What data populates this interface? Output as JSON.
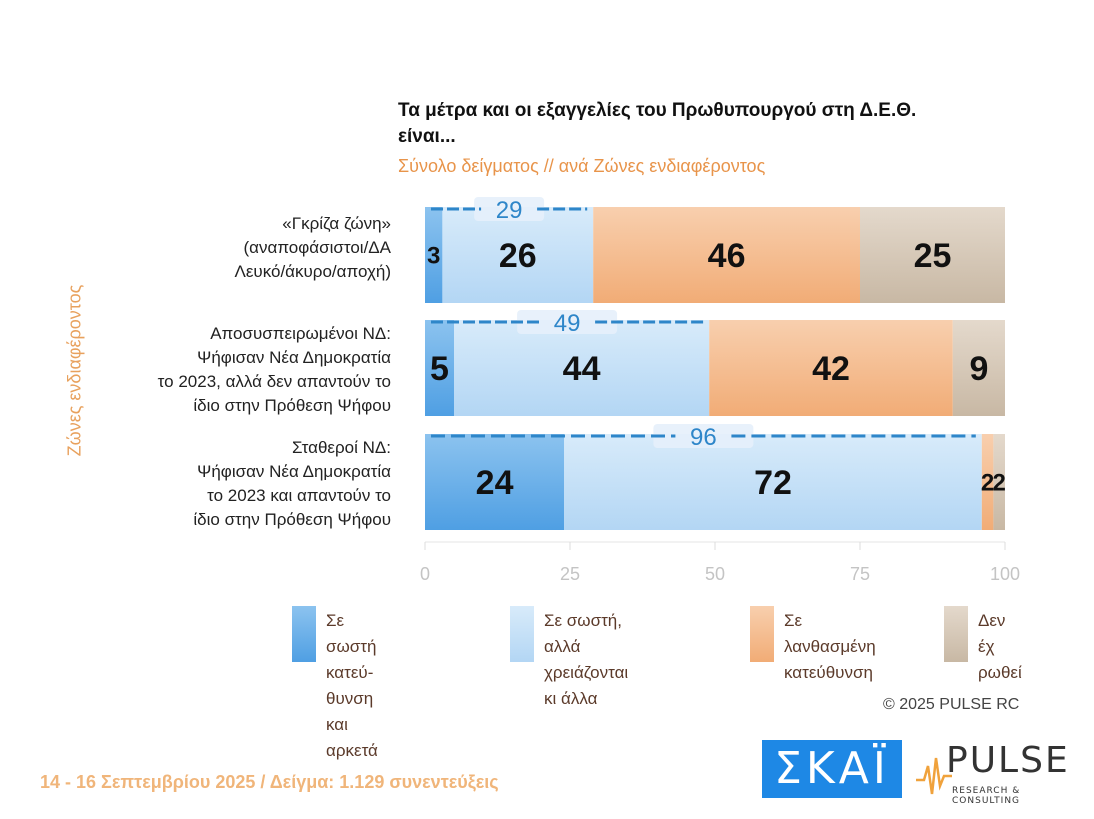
{
  "title": "Τα μέτρα και οι εξαγγελίες του Πρωθυπουργού στη Δ.Ε.Θ. είναι...",
  "subtitle": "Σύνολο δείγματος // ανά Ζώνες ενδιαφέροντος",
  "y_axis_title": "Ζώνες ενδιαφέροντος",
  "categories_lines": [
    [
      "«Γκρίζα ζώνη»",
      "(αναποφάσιστοι/ΔΑ",
      "Λευκό/άκυρο/αποχή)"
    ],
    [
      "Αποσυσπειρωμένοι ΝΔ:",
      "Ψήφισαν Νέα Δημοκρατία",
      "το 2023, αλλά δεν απαντούν το",
      "ίδιο στην Πρόθεση Ψήφου"
    ],
    [
      "Σταθεροί ΝΔ:",
      "Ψήφισαν Νέα Δημοκρατία",
      "το 2023 και απαντούν το",
      "ίδιο στην Πρόθεση Ψήφου"
    ]
  ],
  "legend": [
    "Σε σωστή κατεύ-\nθυνση και αρκετά",
    "Σε σωστή, αλλά\nχρειάζονται κι άλλα",
    "Σε λανθασμένη\nκατεύθυνση",
    "Δεν έχ\nρωθεί"
  ],
  "colors": {
    "dark_blue": "#5aa7e6",
    "light_blue": "#bcdcf6",
    "orange": "#f4b88a",
    "grey": "#d6c8b6",
    "sum_label": "#2e86c9"
  },
  "chart_data": {
    "type": "bar",
    "orientation": "horizontal",
    "stacked": true,
    "categories": [
      "«Γκρίζα ζώνη» (αναποφάσιστοι/ΔΑ Λευκό/άκυρο/αποχή)",
      "Αποσυσπειρωμένοι ΝΔ: Ψήφισαν Νέα Δημοκρατία το 2023, αλλά δεν απαντούν το ίδιο στην Πρόθεση Ψήφου",
      "Σταθεροί ΝΔ: Ψήφισαν Νέα Δημοκρατία το 2023 και απαντούν το ίδιο στην Πρόθεση Ψήφου"
    ],
    "series": [
      {
        "name": "Σε σωστή κατεύθυνση και αρκετά",
        "values": [
          3,
          5,
          24
        ]
      },
      {
        "name": "Σε σωστή, αλλά χρειάζονται κι άλλα",
        "values": [
          26,
          44,
          72
        ]
      },
      {
        "name": "Σε λανθασμένη κατεύθυνση",
        "values": [
          46,
          42,
          2
        ]
      },
      {
        "name": "Δεν έχ ρωθεί",
        "values": [
          25,
          9,
          2
        ]
      }
    ],
    "sum_labels": [
      "29",
      "49",
      "96"
    ],
    "x_ticks": [
      "0",
      "25",
      "50",
      "75",
      "100"
    ],
    "xlim": [
      0,
      100
    ],
    "legend_position": "bottom"
  },
  "copyright": "© 2025 PULSE RC",
  "footer": "14 - 16 Σεπτεμβρίου 2025  /  Δείγμα:  1.129 συνεντεύξεις",
  "logo_skai": "ΣΚΑΪ",
  "logo_pulse": "PULSE",
  "logo_pulse_sub": "RESEARCH & CONSULTING"
}
